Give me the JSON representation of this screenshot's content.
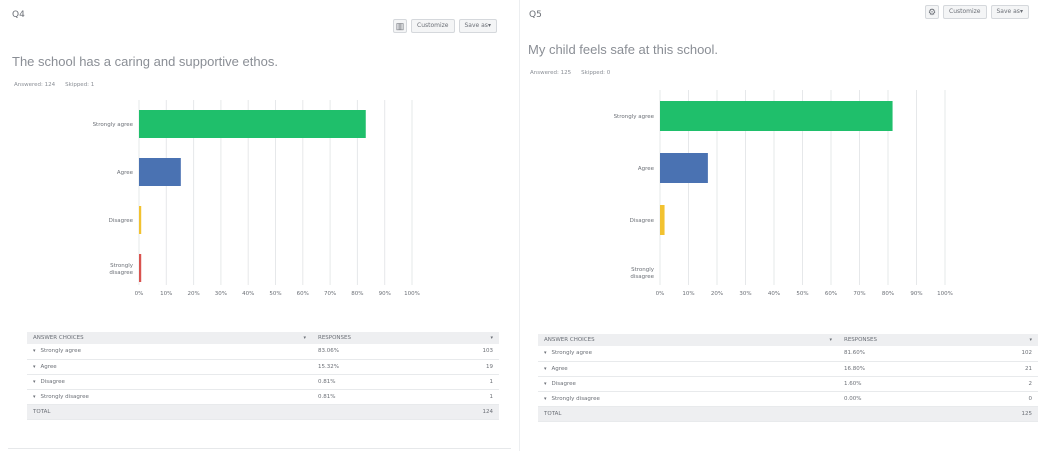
{
  "colors": {
    "strongly_agree": "#1fbf6b",
    "agree": "#4a72b2",
    "disagree": "#f2c230",
    "strongly_disagree": "#d9534f",
    "grid": "#e6e8ea"
  },
  "left": {
    "qnum": "Q4",
    "tools": {
      "icon": "bar-chart-icon",
      "customize": "Customize",
      "save_as": "Save as▾"
    },
    "title": "The school has a caring and supportive ethos.",
    "answered": "Answered: 124",
    "skipped": "Skipped: 1",
    "table": {
      "col_choices": "ANSWER CHOICES",
      "col_responses": "RESPONSES",
      "rows": [
        {
          "label": "Strongly agree",
          "pct": "83.06%",
          "count": "103"
        },
        {
          "label": "Agree",
          "pct": "15.32%",
          "count": "19"
        },
        {
          "label": "Disagree",
          "pct": "0.81%",
          "count": "1"
        },
        {
          "label": "Strongly disagree",
          "pct": "0.81%",
          "count": "1"
        }
      ],
      "total_label": "TOTAL",
      "total_value": "124"
    }
  },
  "right": {
    "qnum": "Q5",
    "tools": {
      "icon": "gear-icon",
      "customize": "Customize",
      "save_as": "Save as▾"
    },
    "title": "My child feels safe at this school.",
    "answered": "Answered: 125",
    "skipped": "Skipped: 0",
    "table": {
      "col_choices": "ANSWER CHOICES",
      "col_responses": "RESPONSES",
      "rows": [
        {
          "label": "Strongly agree",
          "pct": "81.60%",
          "count": "102"
        },
        {
          "label": "Agree",
          "pct": "16.80%",
          "count": "21"
        },
        {
          "label": "Disagree",
          "pct": "1.60%",
          "count": "2"
        },
        {
          "label": "Strongly disagree",
          "pct": "0.00%",
          "count": "0"
        }
      ],
      "total_label": "TOTAL",
      "total_value": "125"
    }
  },
  "chart_data": [
    {
      "type": "bar",
      "orientation": "horizontal",
      "categories": [
        "Strongly agree",
        "Agree",
        "Disagree",
        "Strongly disagree"
      ],
      "values": [
        83.06,
        15.32,
        0.81,
        0.81
      ],
      "xlim": [
        0,
        100
      ],
      "x_ticks": [
        "0%",
        "10%",
        "20%",
        "30%",
        "40%",
        "50%",
        "60%",
        "70%",
        "80%",
        "90%",
        "100%"
      ],
      "grid": true
    },
    {
      "type": "bar",
      "orientation": "horizontal",
      "categories": [
        "Strongly agree",
        "Agree",
        "Disagree",
        "Strongly disagree"
      ],
      "values": [
        81.6,
        16.8,
        1.6,
        0.0
      ],
      "xlim": [
        0,
        100
      ],
      "x_ticks": [
        "0%",
        "10%",
        "20%",
        "30%",
        "40%",
        "50%",
        "60%",
        "70%",
        "80%",
        "90%",
        "100%"
      ],
      "grid": true
    }
  ]
}
